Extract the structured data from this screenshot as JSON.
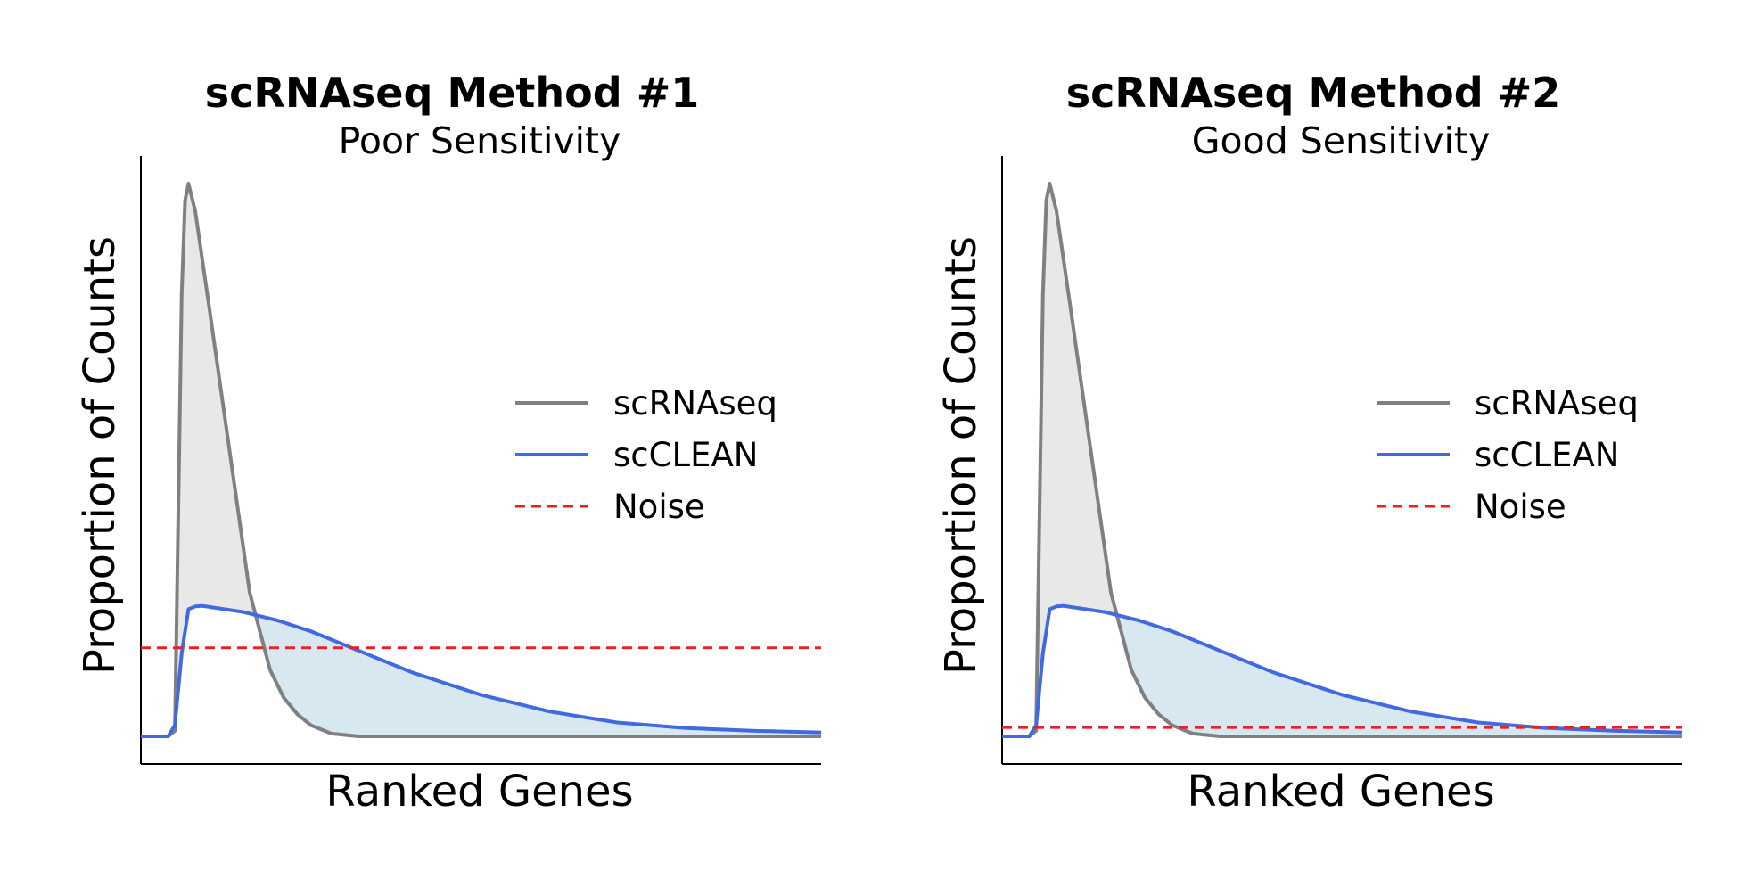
{
  "colors": {
    "scrnaseq": "#808080",
    "scclean": "#4169e1",
    "noise": "#e8231f",
    "scrnaseq_fill": "#e8e8e8",
    "scclean_fill": "#d8e8f0"
  },
  "chart_data": [
    {
      "type": "line",
      "title": "scRNAseq Method #1",
      "subtitle": "Poor Sensitivity",
      "xlabel": "Ranked Genes",
      "ylabel": "Proportion of Counts",
      "xlim": [
        0,
        100
      ],
      "ylim": [
        -0.05,
        1.05
      ],
      "legend_position": "center-right",
      "series": [
        {
          "name": "scRNAseq",
          "style": "solid",
          "x": [
            0,
            4,
            5,
            6,
            6.5,
            7,
            8,
            10,
            13,
            16,
            19,
            21,
            23,
            25,
            28,
            32,
            40,
            60,
            100
          ],
          "y": [
            0,
            0,
            0.01,
            0.8,
            0.97,
            1.0,
            0.95,
            0.78,
            0.52,
            0.26,
            0.12,
            0.07,
            0.04,
            0.02,
            0.005,
            0.0,
            0.0,
            0.0,
            0.0
          ]
        },
        {
          "name": "scCLEAN",
          "style": "solid",
          "x": [
            0,
            4,
            5,
            6,
            7,
            8,
            9,
            15,
            20,
            25,
            30,
            35,
            40,
            50,
            60,
            70,
            80,
            90,
            100
          ],
          "y": [
            0,
            0,
            0.02,
            0.15,
            0.23,
            0.235,
            0.236,
            0.225,
            0.21,
            0.19,
            0.165,
            0.14,
            0.115,
            0.075,
            0.045,
            0.025,
            0.015,
            0.01,
            0.007
          ]
        },
        {
          "name": "Noise",
          "style": "dashed",
          "x": [
            0,
            100
          ],
          "y": [
            0.16,
            0.16
          ]
        }
      ]
    },
    {
      "type": "line",
      "title": "scRNAseq Method #2",
      "subtitle": "Good Sensitivity",
      "xlabel": "Ranked Genes",
      "ylabel": "Proportion of Counts",
      "xlim": [
        0,
        100
      ],
      "ylim": [
        -0.05,
        1.05
      ],
      "legend_position": "center-right",
      "series": [
        {
          "name": "scRNAseq",
          "style": "solid",
          "x": [
            0,
            4,
            5,
            6,
            6.5,
            7,
            8,
            10,
            13,
            16,
            19,
            21,
            23,
            25,
            28,
            32,
            40,
            60,
            100
          ],
          "y": [
            0,
            0,
            0.01,
            0.8,
            0.97,
            1.0,
            0.95,
            0.78,
            0.52,
            0.26,
            0.12,
            0.07,
            0.04,
            0.02,
            0.005,
            0.0,
            0.0,
            0.0,
            0.0
          ]
        },
        {
          "name": "scCLEAN",
          "style": "solid",
          "x": [
            0,
            4,
            5,
            6,
            7,
            8,
            9,
            15,
            20,
            25,
            30,
            35,
            40,
            50,
            60,
            70,
            80,
            90,
            100
          ],
          "y": [
            0,
            0,
            0.02,
            0.15,
            0.23,
            0.235,
            0.236,
            0.225,
            0.21,
            0.19,
            0.165,
            0.14,
            0.115,
            0.075,
            0.045,
            0.025,
            0.015,
            0.01,
            0.007
          ]
        },
        {
          "name": "Noise",
          "style": "dashed",
          "x": [
            0,
            100
          ],
          "y": [
            0.016,
            0.016
          ]
        }
      ]
    }
  ]
}
